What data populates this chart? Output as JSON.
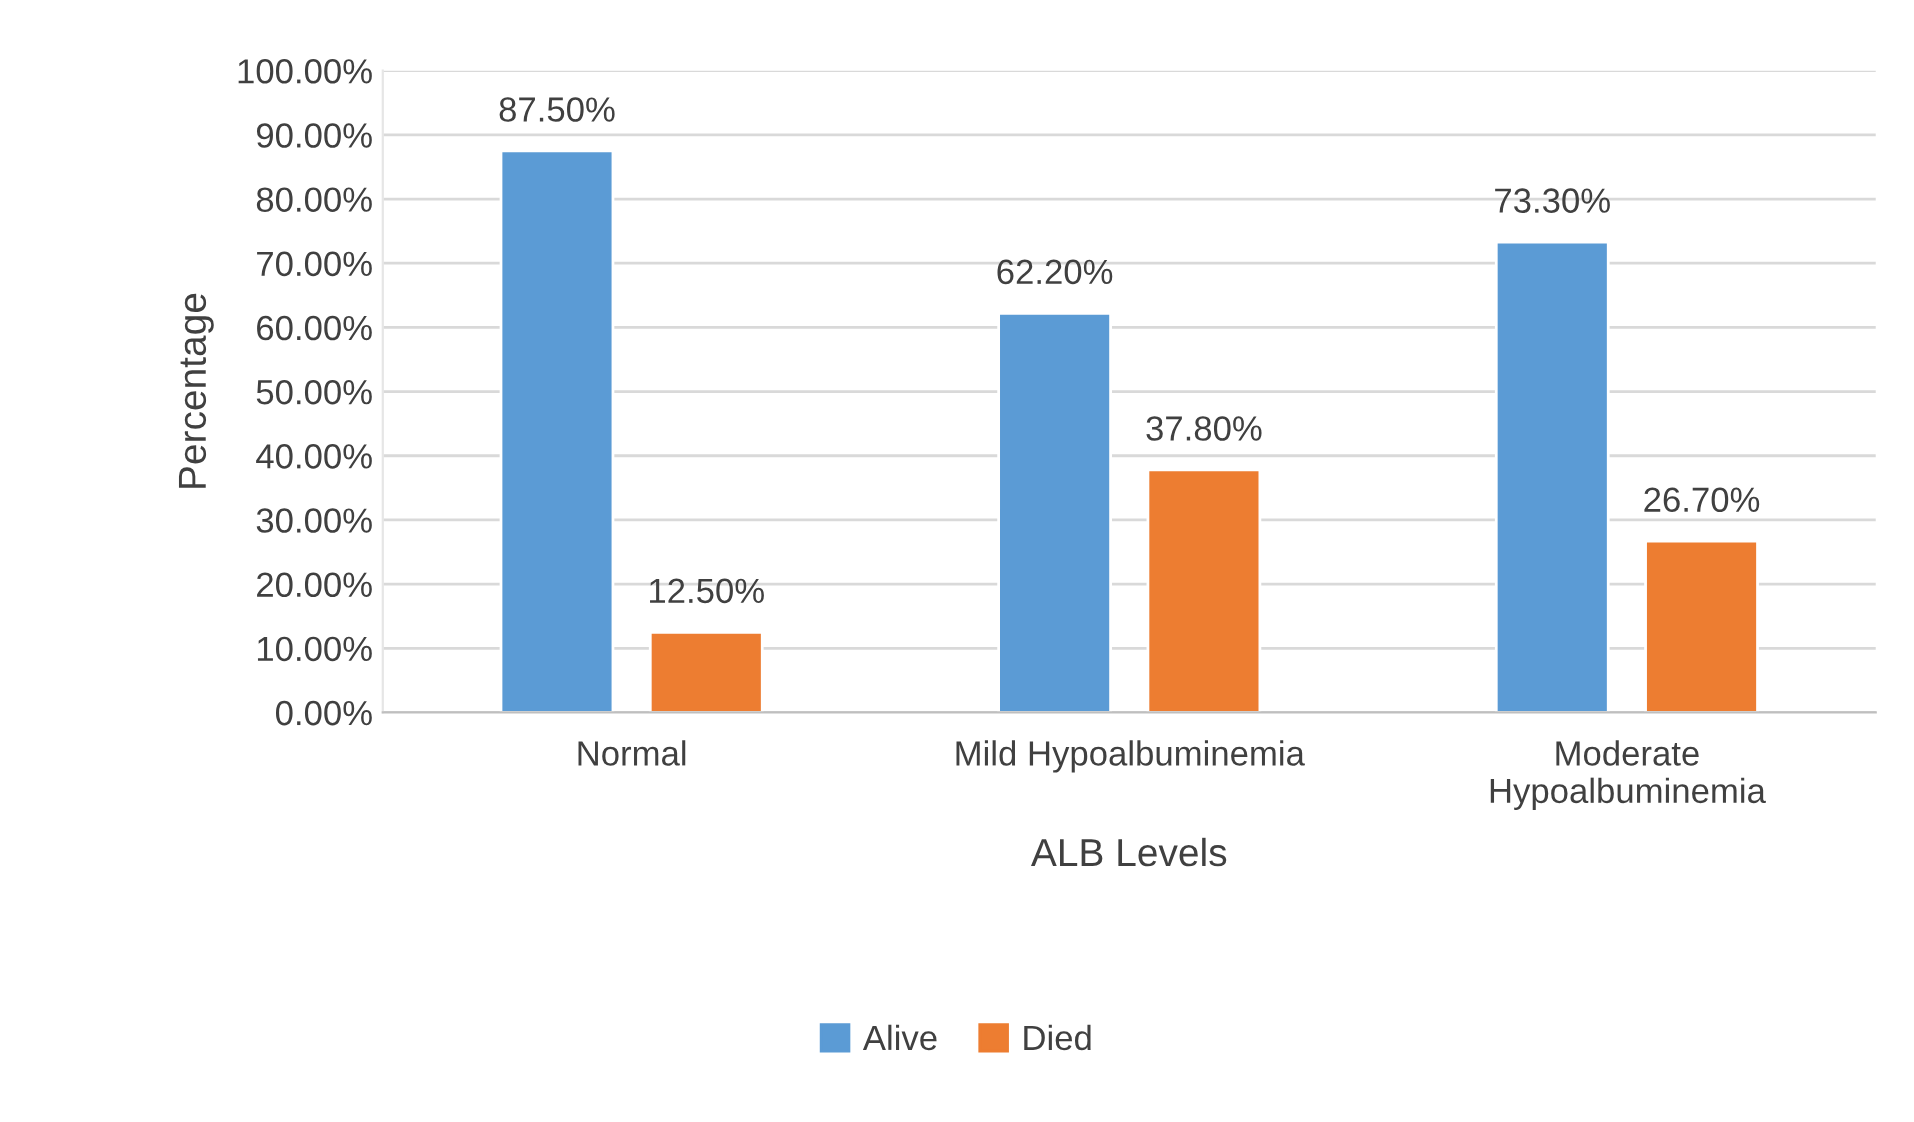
{
  "chart_data": {
    "type": "bar",
    "xlabel": "ALB Levels",
    "ylabel": "Percentage",
    "categories": [
      "Normal",
      "Mild Hypoalbuminemia",
      "Moderate Hypoalbuminemia"
    ],
    "series": [
      {
        "name": "Alive",
        "color": "#5b9bd5",
        "values": [
          87.5,
          62.2,
          73.3
        ],
        "value_labels": [
          "87.50%",
          "62.20%",
          "73.30%"
        ]
      },
      {
        "name": "Died",
        "color": "#ed7d31",
        "values": [
          12.5,
          37.8,
          26.7
        ],
        "value_labels": [
          "12.50%",
          "37.80%",
          "26.70%"
        ]
      }
    ],
    "ylim": [
      0,
      100
    ],
    "yticks": [
      {
        "value": 0,
        "label": "0.00%"
      },
      {
        "value": 10,
        "label": "10.00%"
      },
      {
        "value": 20,
        "label": "20.00%"
      },
      {
        "value": 30,
        "label": "30.00%"
      },
      {
        "value": 40,
        "label": "40.00%"
      },
      {
        "value": 50,
        "label": "50.00%"
      },
      {
        "value": 60,
        "label": "60.00%"
      },
      {
        "value": 70,
        "label": "70.00%"
      },
      {
        "value": 80,
        "label": "80.00%"
      },
      {
        "value": 90,
        "label": "90.00%"
      },
      {
        "value": 100,
        "label": "100.00%"
      }
    ],
    "grid": "y",
    "legend": "bottom"
  }
}
